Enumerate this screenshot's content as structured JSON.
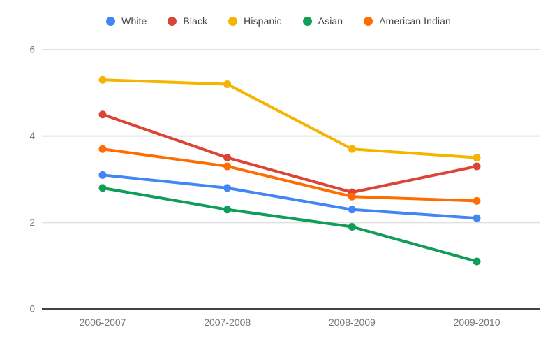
{
  "chart_data": {
    "type": "line",
    "title": "",
    "categories": [
      "2006-2007",
      "2007-2008",
      "2008-2009",
      "2009-2010"
    ],
    "series": [
      {
        "name": "White",
        "color": "#4285F4",
        "values": [
          3.1,
          2.8,
          2.3,
          2.1
        ]
      },
      {
        "name": "Black",
        "color": "#DB4437",
        "values": [
          4.5,
          3.5,
          2.7,
          3.3
        ]
      },
      {
        "name": "Hispanic",
        "color": "#F4B400",
        "values": [
          5.3,
          5.2,
          3.7,
          3.5
        ]
      },
      {
        "name": "Asian",
        "color": "#0F9D58",
        "values": [
          2.8,
          2.3,
          1.9,
          1.1
        ]
      },
      {
        "name": "American Indian",
        "color": "#FF6D00",
        "values": [
          3.7,
          3.3,
          2.6,
          2.5
        ]
      }
    ],
    "xlabel": "",
    "ylabel": "",
    "ylim": [
      0,
      6
    ],
    "yticks": [
      0,
      2,
      4,
      6
    ],
    "grid": true,
    "legend_position": "top"
  },
  "colors": {
    "background": "#ffffff",
    "grid_line": "#e0e0e0",
    "axis_line": "#424242",
    "tick_label": "#757575",
    "legend_text": "#424242"
  }
}
